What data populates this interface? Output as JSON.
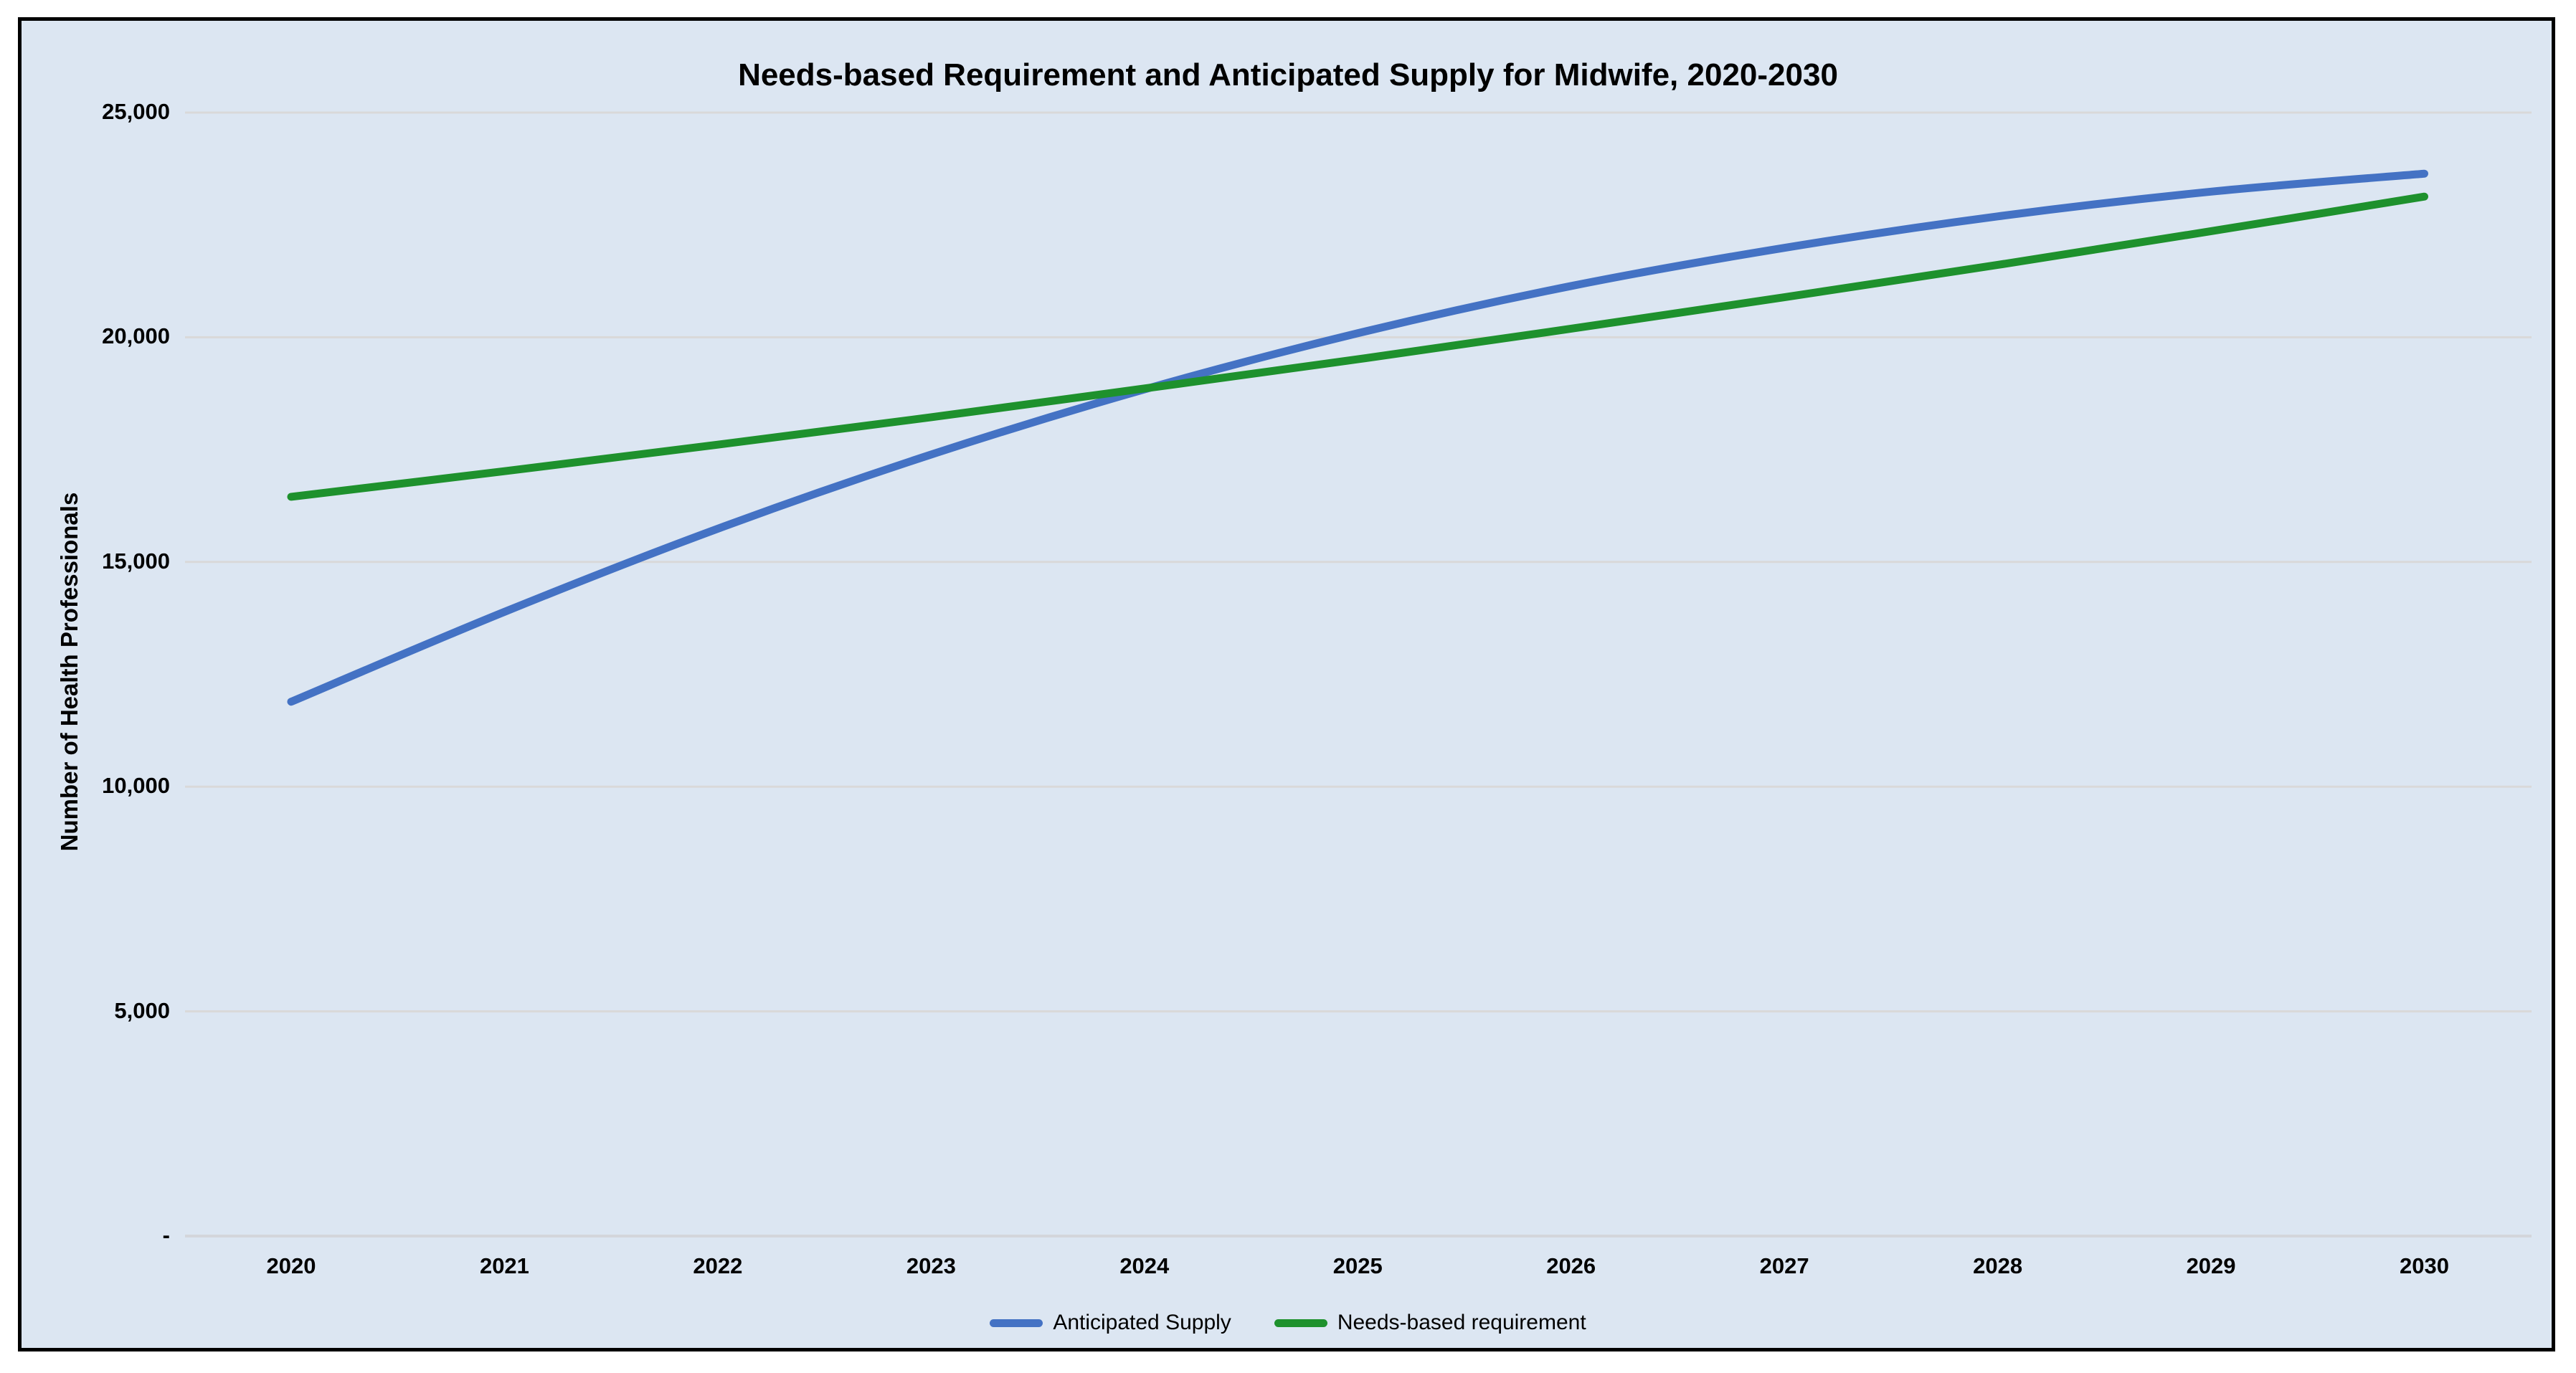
{
  "figure": {
    "outer_background": "#ffffff",
    "chart_background": "#DCE6F2",
    "border_color": "#000000",
    "gridline_color": "#D9D9D9",
    "axis_line_color": "#D3D6DB",
    "text_color": "#000000"
  },
  "title": "Needs-based Requirement and Anticipated Supply for Midwife, 2020-2030",
  "y_axis": {
    "title": "Number of Health Professionals",
    "ticks": [
      {
        "value": 0,
        "label": "-"
      },
      {
        "value": 5000,
        "label": "5,000"
      },
      {
        "value": 10000,
        "label": "10,000"
      },
      {
        "value": 15000,
        "label": "15,000"
      },
      {
        "value": 20000,
        "label": "20,000"
      },
      {
        "value": 25000,
        "label": "25,000"
      }
    ]
  },
  "x_axis": {
    "categories": [
      "2020",
      "2021",
      "2022",
      "2023",
      "2024",
      "2025",
      "2026",
      "2027",
      "2028",
      "2029",
      "2030"
    ]
  },
  "chart_data": {
    "type": "line",
    "title": "Needs-based Requirement and Anticipated Supply for Midwife, 2020-2030",
    "xlabel": "",
    "ylabel": "Number of Health Professionals",
    "x": [
      2020,
      2021,
      2022,
      2023,
      2024,
      2025,
      2026,
      2027,
      2028,
      2029,
      2030
    ],
    "ylim": [
      0,
      25000
    ],
    "y_tick_interval": 5000,
    "grid": "horizontal",
    "legend_position": "bottom",
    "series": [
      {
        "name": "Anticipated Supply",
        "color": "#4472C4",
        "values": [
          11890,
          13890,
          15740,
          17390,
          18840,
          20090,
          21140,
          21990,
          22690,
          23240,
          23640
        ]
      },
      {
        "name": "Needs-based requirement",
        "color": "#1E912D",
        "values": [
          16450,
          17020,
          17610,
          18220,
          18860,
          19510,
          20190,
          20890,
          21610,
          22360,
          23130
        ]
      }
    ],
    "annotations": {
      "crossing_point": "Supply overtakes requirement near 2024 at about 18,800"
    }
  }
}
